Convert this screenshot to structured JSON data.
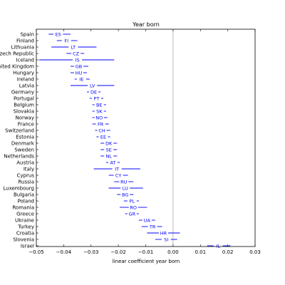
{
  "chart_data": {
    "type": "errorbar",
    "title": "Year born",
    "xlabel": "linear coefficient year born",
    "xlim": [
      -0.05,
      0.03
    ],
    "xticks": [
      "−0.05",
      "−0.04",
      "−0.03",
      "−0.02",
      "−0.01",
      "0.00",
      "0.01",
      "0.02",
      "0.03"
    ],
    "xtick_values": [
      -0.05,
      -0.04,
      -0.03,
      -0.02,
      -0.01,
      0.0,
      0.01,
      0.02,
      0.03
    ],
    "reference_line": 0.0,
    "grid": false,
    "color": "#0000ff",
    "rows": [
      {
        "country": "Spain",
        "code": "ES",
        "estimate": -0.042,
        "low": -0.0455,
        "high": -0.0375
      },
      {
        "country": "Finland",
        "code": "FI",
        "estimate": -0.039,
        "low": -0.0425,
        "high": -0.035
      },
      {
        "country": "Lithuania",
        "code": "LT",
        "estimate": -0.0365,
        "low": -0.0445,
        "high": -0.028
      },
      {
        "country": "zech Republic",
        "code": "CZ",
        "estimate": -0.0355,
        "low": -0.039,
        "high": -0.0325
      },
      {
        "country": "Iceland",
        "code": "IS",
        "estimate": -0.035,
        "low": -0.049,
        "high": -0.0215
      },
      {
        "country": "nited Kingdom",
        "code": "GB",
        "estimate": -0.0345,
        "low": -0.0375,
        "high": -0.031
      },
      {
        "country": "Hungary",
        "code": "HU",
        "estimate": -0.0345,
        "low": -0.0375,
        "high": -0.0315
      },
      {
        "country": "Ireland",
        "code": "IE",
        "estimate": -0.0335,
        "low": -0.036,
        "high": -0.0305
      },
      {
        "country": "Latvia",
        "code": "LV",
        "estimate": -0.0295,
        "low": -0.0375,
        "high": -0.0215
      },
      {
        "country": "Germany",
        "code": "DE",
        "estimate": -0.029,
        "low": -0.0315,
        "high": -0.0265
      },
      {
        "country": "Portugal",
        "code": "PT",
        "estimate": -0.028,
        "low": -0.0305,
        "high": -0.0255
      },
      {
        "country": "Belgium",
        "code": "BE",
        "estimate": -0.027,
        "low": -0.0295,
        "high": -0.0245
      },
      {
        "country": "Slovakia",
        "code": "SK",
        "estimate": -0.027,
        "low": -0.0295,
        "high": -0.0245
      },
      {
        "country": "Norway",
        "code": "NO",
        "estimate": -0.027,
        "low": -0.0295,
        "high": -0.024
      },
      {
        "country": "France",
        "code": "FR",
        "estimate": -0.0265,
        "low": -0.0295,
        "high": -0.0235
      },
      {
        "country": "Switzerland",
        "code": "CH",
        "estimate": -0.026,
        "low": -0.0285,
        "high": -0.023
      },
      {
        "country": "Estonia",
        "code": "EE",
        "estimate": -0.0255,
        "low": -0.028,
        "high": -0.023
      },
      {
        "country": "Denmark",
        "code": "DK",
        "estimate": -0.0235,
        "low": -0.0265,
        "high": -0.0205
      },
      {
        "country": "Sweden",
        "code": "SE",
        "estimate": -0.0235,
        "low": -0.0265,
        "high": -0.0205
      },
      {
        "country": "Netherlands",
        "code": "NL",
        "estimate": -0.0235,
        "low": -0.0265,
        "high": -0.0205
      },
      {
        "country": "Austria",
        "code": "AT",
        "estimate": -0.022,
        "low": -0.0245,
        "high": -0.0195
      },
      {
        "country": "Italy",
        "code": "IT",
        "estimate": -0.0205,
        "low": -0.029,
        "high": -0.012
      },
      {
        "country": "Cyprus",
        "code": "CY",
        "estimate": -0.02,
        "low": -0.0235,
        "high": -0.0165
      },
      {
        "country": "Russia",
        "code": "RU",
        "estimate": -0.018,
        "low": -0.0215,
        "high": -0.0145
      },
      {
        "country": "Luxembourg",
        "code": "LU",
        "estimate": -0.0175,
        "low": -0.0235,
        "high": -0.011
      },
      {
        "country": "Bulgaria",
        "code": "BG",
        "estimate": -0.0175,
        "low": -0.0205,
        "high": -0.0145
      },
      {
        "country": "Poland",
        "code": "PL",
        "estimate": -0.015,
        "low": -0.018,
        "high": -0.0125
      },
      {
        "country": "Romania",
        "code": "RO",
        "estimate": -0.0145,
        "low": -0.0195,
        "high": -0.0095
      },
      {
        "country": "Greece",
        "code": "GR",
        "estimate": -0.015,
        "low": -0.0175,
        "high": -0.0125
      },
      {
        "country": "Ukraine",
        "code": "UA",
        "estimate": -0.0095,
        "low": -0.0125,
        "high": -0.0065
      },
      {
        "country": "Turkey",
        "code": "TR",
        "estimate": -0.0075,
        "low": -0.0115,
        "high": -0.004
      },
      {
        "country": "Croatia",
        "code": "HR",
        "estimate": -0.0035,
        "low": -0.0095,
        "high": 0.0025
      },
      {
        "country": "Slovenia",
        "code": "SI",
        "estimate": -0.0025,
        "low": -0.0065,
        "high": 0.0015
      },
      {
        "country": "Israel",
        "code": "IL",
        "estimate": 0.0165,
        "low": 0.0125,
        "high": 0.021
      }
    ]
  }
}
